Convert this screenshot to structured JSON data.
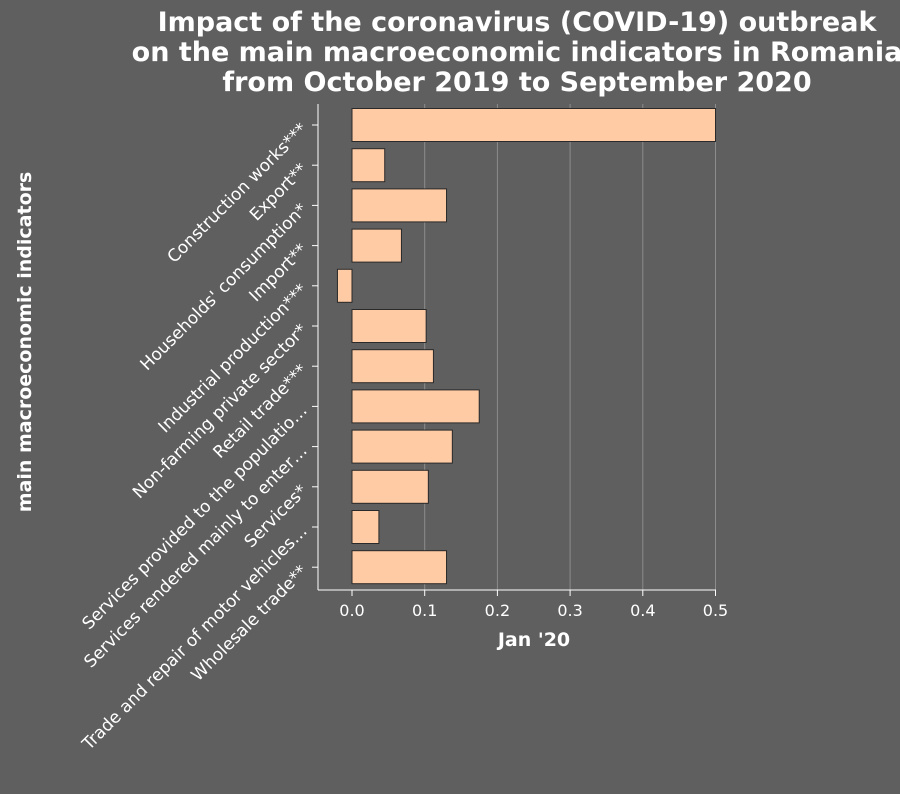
{
  "chart_data": {
    "type": "bar",
    "orientation": "horizontal",
    "title_lines": [
      "Impact of the coronavirus (COVID-19) outbreak",
      "on the main macroeconomic indicators in Romania",
      "from October 2019 to September 2020"
    ],
    "xlabel": "Jan '20",
    "ylabel": "main macroeconomic indicators",
    "categories": [
      "Construction works***",
      "Export**",
      "Households' consumption*",
      "Import**",
      "Industrial production***",
      "Non-farming private sector*",
      "Retail trade***",
      "Services provided to the populatio…",
      "Services rendered mainly to enter…",
      "Services*",
      "Trade and repair of motor vehicles…",
      "Wholesale trade**"
    ],
    "values": [
      0.5,
      0.045,
      0.13,
      0.068,
      -0.02,
      0.102,
      0.112,
      0.175,
      0.138,
      0.105,
      0.037,
      0.13
    ],
    "xlim": [
      -0.05,
      0.5
    ],
    "xticks": [
      "0.0",
      "0.1",
      "0.2",
      "0.3",
      "0.4",
      "0.5"
    ],
    "xtick_values": [
      0.0,
      0.1,
      0.2,
      0.3,
      0.4,
      0.5
    ],
    "grid": true,
    "bar_color": "#ffcba4",
    "background_color": "#5f5f5f"
  }
}
